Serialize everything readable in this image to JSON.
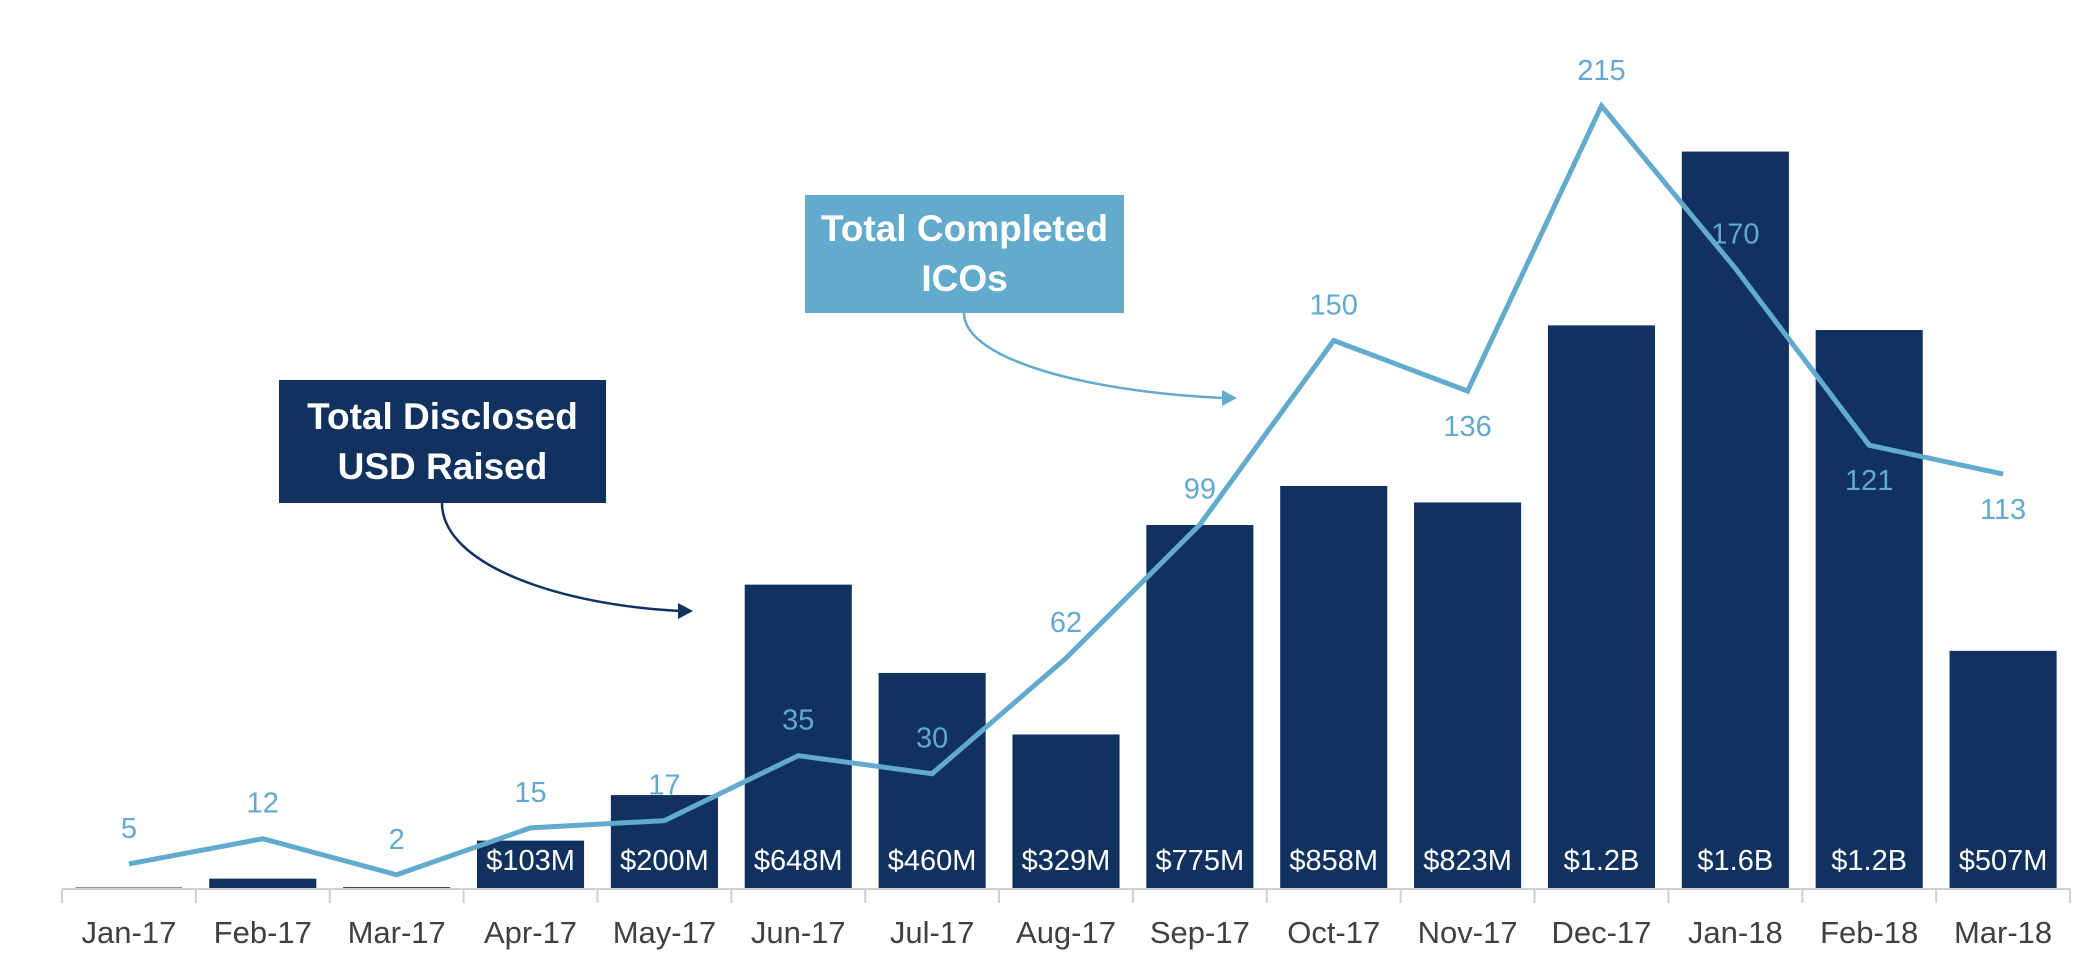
{
  "chart_data": {
    "type": "bar",
    "title": "",
    "xlabel": "",
    "ylabel": "",
    "categories": [
      "Jan-17",
      "Feb-17",
      "Mar-17",
      "Apr-17",
      "May-17",
      "Jun-17",
      "Jul-17",
      "Aug-17",
      "Sep-17",
      "Oct-17",
      "Nov-17",
      "Dec-17",
      "Jan-18",
      "Feb-18",
      "Mar-18"
    ],
    "series": [
      {
        "name": "Total Disclosed USD Raised",
        "type": "bar",
        "color": "#11325f",
        "values": [
          3,
          22,
          4,
          103,
          200,
          648,
          460,
          329,
          775,
          858,
          823,
          1200,
          1570,
          1190,
          507
        ],
        "labels": [
          "",
          "",
          "",
          "$103M",
          "$200M",
          "$648M",
          "$460M",
          "$329M",
          "$775M",
          "$858M",
          "$823M",
          "$1.2B",
          "$1.6B",
          "$1.2B",
          "$507M"
        ]
      },
      {
        "name": "Total Completed ICOs",
        "type": "line",
        "color": "#63abcd",
        "values": [
          5,
          12,
          2,
          15,
          17,
          35,
          30,
          62,
          99,
          150,
          136,
          215,
          170,
          121,
          113
        ]
      }
    ],
    "legend": "callouts",
    "grid": false
  },
  "callouts": {
    "usd_raised": "Total Disclosed USD Raised",
    "completed_icos": "Total Completed ICOs"
  }
}
